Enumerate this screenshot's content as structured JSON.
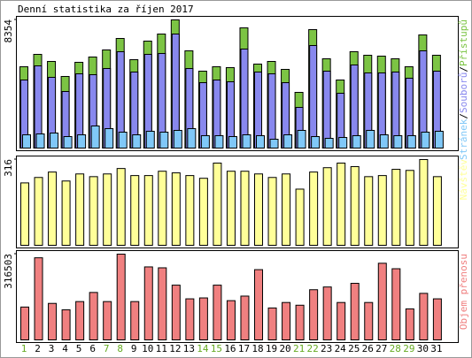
{
  "chart_data": [
    {
      "type": "bar",
      "title": "Denní statistika za říjen 2017",
      "ylim": [
        0,
        8354
      ],
      "yticks": [
        8354
      ],
      "legend_separator": "/",
      "series": [
        {
          "name": "Stránek",
          "color": "#80c8f8",
          "values": [
            864,
            922,
            979,
            749,
            864,
            1440,
            1267,
            1037,
            864,
            1095,
            1037,
            1152,
            1267,
            807,
            807,
            749,
            864,
            807,
            576,
            864,
            1152,
            749,
            634,
            691,
            807,
            1152,
            864,
            807,
            807,
            1037,
            1095
          ]
        },
        {
          "name": "Souborů",
          "color": "#8888ee",
          "values": [
            4436,
            5358,
            4609,
            3687,
            4840,
            4782,
            5185,
            6280,
            4955,
            6107,
            6165,
            7432,
            5185,
            4263,
            4436,
            4321,
            6453,
            4955,
            4840,
            4263,
            2650,
            6683,
            5012,
            3572,
            5416,
            4897,
            4897,
            4955,
            4552,
            6338,
            5012
          ]
        },
        {
          "name": "Přístupů",
          "color": "#7cc444",
          "values": [
            5300,
            6107,
            5646,
            4667,
            5589,
            5934,
            6395,
            7144,
            5761,
            6971,
            7432,
            8354,
            6338,
            5012,
            5300,
            5243,
            7835,
            5473,
            5646,
            5128,
            3630,
            7720,
            5819,
            4436,
            6280,
            6049,
            5992,
            5819,
            5300,
            7374,
            6049
          ]
        }
      ]
    },
    {
      "type": "bar",
      "ylim": [
        0,
        316
      ],
      "yticks": [
        316
      ],
      "series": [
        {
          "name": "Návštěv",
          "color": "#ffff99",
          "values": [
            230,
            250,
            270,
            237,
            263,
            253,
            263,
            283,
            257,
            257,
            273,
            267,
            257,
            247,
            303,
            273,
            273,
            263,
            250,
            263,
            207,
            270,
            286,
            303,
            290,
            253,
            257,
            280,
            276,
            316,
            253
          ]
        }
      ]
    },
    {
      "type": "bar",
      "ylim": [
        0,
        316503
      ],
      "yticks": [
        316503
      ],
      "series": [
        {
          "name": "Objem přenosu",
          "color": "#f08080",
          "values": [
            121214,
            303034,
            134682,
            111112,
            141416,
            175084,
            141416,
            316503,
            141416,
            269364,
            265997,
            202023,
            151516,
            154883,
            202023,
            144783,
            161617,
            259263,
            117846,
            138049,
            127951,
            185186,
            195287,
            138049,
            208758,
            138049,
            282835,
            262630,
            114479,
            171718,
            151516
          ]
        }
      ],
      "categories": [
        "1",
        "2",
        "3",
        "4",
        "5",
        "6",
        "7",
        "8",
        "9",
        "10",
        "11",
        "12",
        "13",
        "14",
        "15",
        "16",
        "17",
        "18",
        "19",
        "20",
        "21",
        "22",
        "23",
        "24",
        "25",
        "26",
        "27",
        "28",
        "29",
        "30",
        "31"
      ],
      "category_colors": [
        "#66aa22",
        "#000000",
        "#000000",
        "#000000",
        "#000000",
        "#000000",
        "#66aa22",
        "#66aa22",
        "#000000",
        "#000000",
        "#000000",
        "#000000",
        "#000000",
        "#66aa22",
        "#66aa22",
        "#000000",
        "#000000",
        "#000000",
        "#000000",
        "#000000",
        "#66aa22",
        "#66aa22",
        "#000000",
        "#000000",
        "#000000",
        "#000000",
        "#000000",
        "#66aa22",
        "#66aa22",
        "#000000",
        "#000000"
      ]
    }
  ]
}
